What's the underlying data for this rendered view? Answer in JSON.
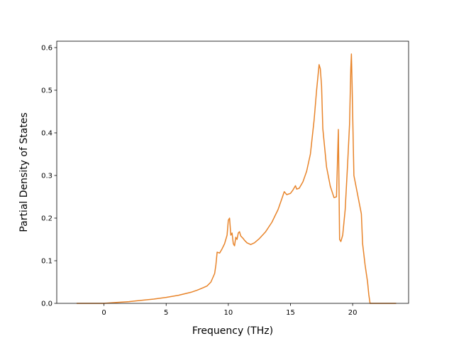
{
  "chart_data": {
    "type": "line",
    "title": "",
    "xlabel": "Frequency (THz)",
    "ylabel": "Partial Density of States",
    "xlim": [
      -3.8,
      24.5
    ],
    "ylim": [
      0.0,
      0.615
    ],
    "xticks": [
      0,
      5,
      10,
      15,
      20
    ],
    "yticks": [
      0.0,
      0.1,
      0.2,
      0.3,
      0.4,
      0.5,
      0.6
    ],
    "ytick_labels": [
      "0.0",
      "0.1",
      "0.2",
      "0.3",
      "0.4",
      "0.5",
      "0.6"
    ],
    "grid": false,
    "legend": "none",
    "series": [
      {
        "color": "#e8842a",
        "x": [
          -2.2,
          -1,
          0,
          1,
          2,
          3,
          4,
          5,
          6,
          7,
          7.5,
          8,
          8.3,
          8.6,
          8.9,
          9.0,
          9.1,
          9.3,
          9.5,
          9.7,
          9.9,
          10.0,
          10.1,
          10.2,
          10.3,
          10.4,
          10.5,
          10.6,
          10.7,
          10.8,
          10.9,
          11.0,
          11.1,
          11.2,
          11.3,
          11.5,
          11.8,
          12.1,
          12.5,
          13.0,
          13.5,
          14.0,
          14.3,
          14.5,
          14.7,
          15.0,
          15.2,
          15.4,
          15.5,
          15.7,
          16.0,
          16.3,
          16.6,
          16.9,
          17.1,
          17.3,
          17.4,
          17.5,
          17.6,
          17.9,
          18.2,
          18.5,
          18.7,
          18.85,
          18.95,
          19.05,
          19.2,
          19.4,
          19.6,
          19.75,
          19.85,
          19.9,
          19.95,
          20.1,
          20.3,
          20.5,
          20.7,
          20.8,
          21.0,
          21.2,
          21.3,
          21.4,
          22,
          23,
          23.5
        ],
        "y": [
          0.0,
          0.0,
          0.0,
          0.002,
          0.004,
          0.007,
          0.01,
          0.014,
          0.019,
          0.026,
          0.031,
          0.037,
          0.041,
          0.05,
          0.07,
          0.09,
          0.12,
          0.118,
          0.128,
          0.14,
          0.16,
          0.195,
          0.2,
          0.16,
          0.165,
          0.14,
          0.135,
          0.155,
          0.15,
          0.165,
          0.168,
          0.158,
          0.155,
          0.152,
          0.148,
          0.142,
          0.138,
          0.142,
          0.152,
          0.168,
          0.19,
          0.22,
          0.245,
          0.262,
          0.255,
          0.258,
          0.266,
          0.276,
          0.268,
          0.27,
          0.285,
          0.31,
          0.35,
          0.43,
          0.5,
          0.56,
          0.55,
          0.51,
          0.41,
          0.32,
          0.275,
          0.248,
          0.25,
          0.408,
          0.15,
          0.145,
          0.16,
          0.22,
          0.33,
          0.42,
          0.55,
          0.585,
          0.52,
          0.3,
          0.27,
          0.24,
          0.21,
          0.14,
          0.09,
          0.05,
          0.02,
          0.0,
          0.0,
          0.0,
          0.0
        ]
      }
    ]
  }
}
